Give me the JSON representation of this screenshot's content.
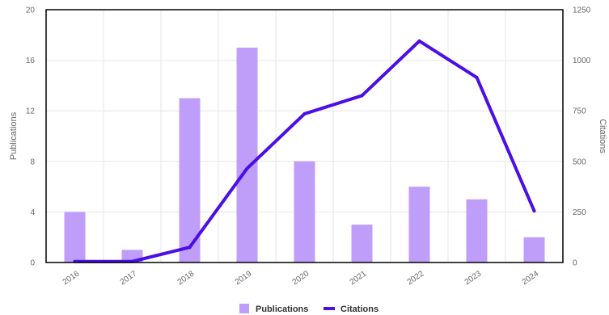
{
  "chart_data": {
    "type": "bar",
    "categories": [
      "2016",
      "2017",
      "2018",
      "2019",
      "2020",
      "2021",
      "2022",
      "2023",
      "2024"
    ],
    "series": [
      {
        "name": "Publications",
        "type": "bar",
        "axis": "left",
        "color": "#bf9ef9",
        "values": [
          4,
          1,
          13,
          17,
          8,
          3,
          6,
          5,
          2
        ]
      },
      {
        "name": "Citations",
        "type": "line",
        "axis": "right",
        "color": "#4b0ee6",
        "values": [
          5,
          5,
          75,
          465,
          735,
          825,
          1095,
          915,
          255
        ]
      }
    ],
    "ylabel": "Publications",
    "y2label": "Citations",
    "ylim": [
      0,
      20
    ],
    "yticks": [
      "0",
      "4",
      "8",
      "12",
      "16",
      "20"
    ],
    "y2lim": [
      0,
      1250
    ],
    "y2ticks": [
      "0",
      "250",
      "500",
      "750",
      "1000",
      "1250"
    ],
    "grid": true,
    "legend": "bottom-center"
  }
}
